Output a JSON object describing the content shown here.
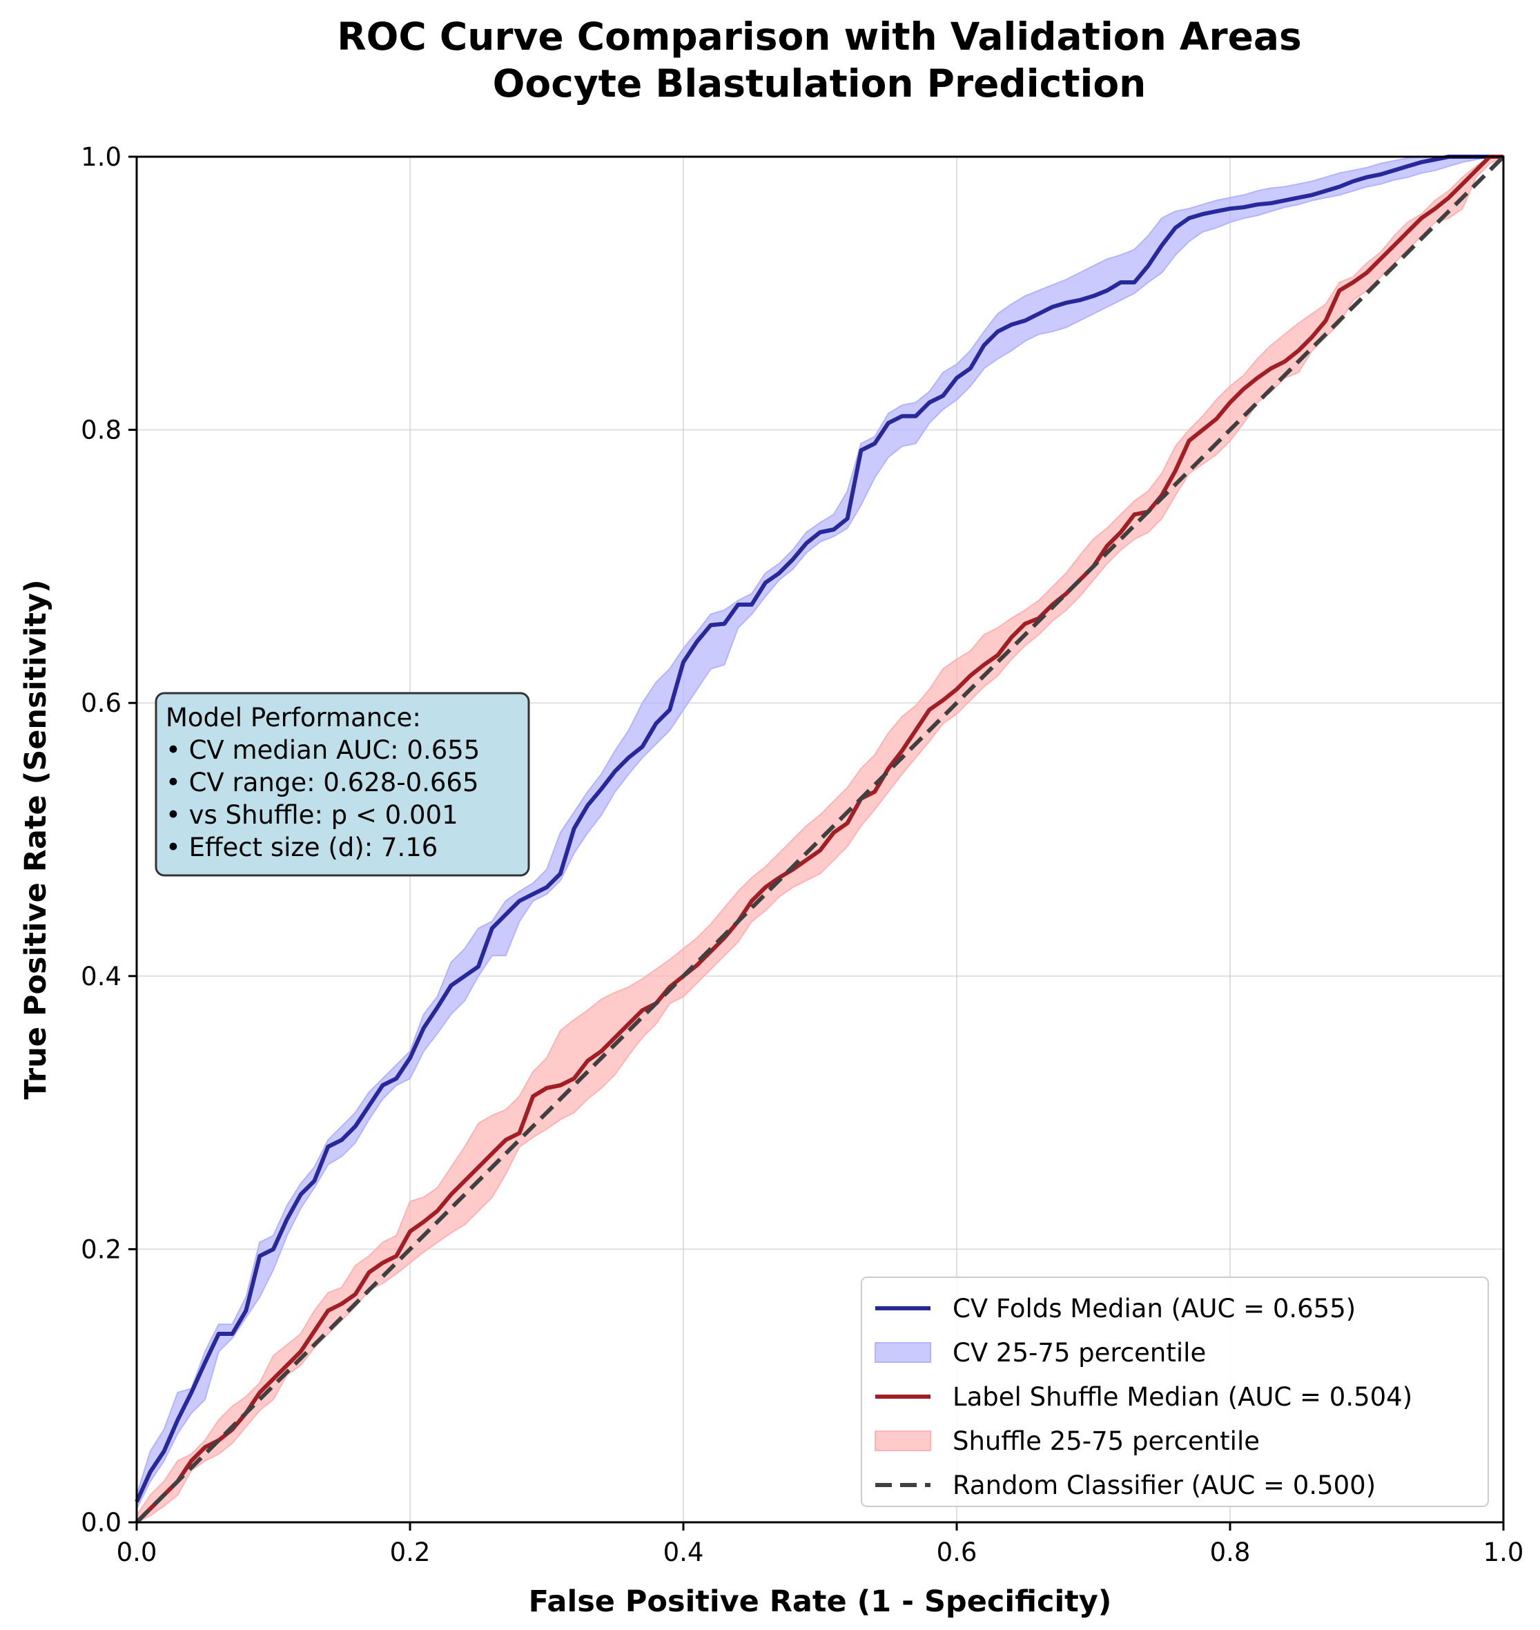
{
  "chart_data": {
    "type": "line",
    "title_lines": [
      "ROC Curve Comparison with Validation Areas",
      "Oocyte Blastulation Prediction"
    ],
    "xlabel": "False Positive Rate (1 - Specificity)",
    "ylabel": "True Positive Rate (Sensitivity)",
    "xlim": [
      0,
      1
    ],
    "ylim": [
      0,
      1
    ],
    "x_ticks": [
      "0.0",
      "0.2",
      "0.4",
      "0.6",
      "0.8",
      "1.0"
    ],
    "y_ticks": [
      "0.0",
      "0.2",
      "0.4",
      "0.6",
      "0.8",
      "1.0"
    ],
    "grid": true,
    "legend_position": "lower-right",
    "colors": {
      "cv_line": "#27289a",
      "cv_band": "#b3b3ff",
      "shuffle_line": "#a11f24",
      "shuffle_band": "#ffb3b3",
      "random_line": "#404040",
      "annotation_bg": "#bfe0ea"
    },
    "legend": [
      {
        "label": "CV Folds Median (AUC = 0.655)",
        "kind": "line",
        "color_key": "cv_line"
      },
      {
        "label": "CV 25-75 percentile",
        "kind": "band",
        "color_key": "cv_band"
      },
      {
        "label": "Label Shuffle Median (AUC = 0.504)",
        "kind": "line",
        "color_key": "shuffle_line"
      },
      {
        "label": "Shuffle 25-75 percentile",
        "kind": "band",
        "color_key": "shuffle_band"
      },
      {
        "label": "Random Classifier (AUC = 0.500)",
        "kind": "dashed",
        "color_key": "random_line"
      }
    ],
    "annotation": [
      "Model Performance:",
      "• CV median AUC: 0.655",
      "• CV range: 0.628-0.665",
      "• vs Shuffle: p < 0.001",
      "• Effect size (d): 7.16"
    ],
    "series": [
      {
        "name": "CV Folds Median (AUC = 0.655)",
        "x": [
          0.0,
          0.01,
          0.02,
          0.03,
          0.04,
          0.05,
          0.06,
          0.07,
          0.08,
          0.09,
          0.1,
          0.11,
          0.12,
          0.13,
          0.14,
          0.15,
          0.16,
          0.17,
          0.18,
          0.19,
          0.2,
          0.21,
          0.22,
          0.23,
          0.24,
          0.25,
          0.26,
          0.27,
          0.28,
          0.29,
          0.3,
          0.31,
          0.32,
          0.33,
          0.34,
          0.35,
          0.36,
          0.37,
          0.38,
          0.39,
          0.4,
          0.41,
          0.42,
          0.43,
          0.44,
          0.45,
          0.46,
          0.47,
          0.48,
          0.49,
          0.5,
          0.51,
          0.52,
          0.53,
          0.54,
          0.55,
          0.56,
          0.57,
          0.58,
          0.59,
          0.6,
          0.61,
          0.62,
          0.63,
          0.64,
          0.65,
          0.66,
          0.67,
          0.68,
          0.69,
          0.7,
          0.71,
          0.72,
          0.73,
          0.74,
          0.75,
          0.76,
          0.77,
          0.78,
          0.79,
          0.8,
          0.81,
          0.82,
          0.83,
          0.84,
          0.85,
          0.86,
          0.87,
          0.88,
          0.89,
          0.9,
          0.91,
          0.92,
          0.93,
          0.94,
          0.95,
          0.96,
          0.97,
          0.98,
          0.99,
          1.0
        ],
        "y": [
          0.015,
          0.037,
          0.052,
          0.075,
          0.095,
          0.117,
          0.138,
          0.138,
          0.155,
          0.195,
          0.2,
          0.222,
          0.24,
          0.25,
          0.275,
          0.28,
          0.29,
          0.305,
          0.32,
          0.325,
          0.34,
          0.362,
          0.377,
          0.393,
          0.4,
          0.407,
          0.435,
          0.445,
          0.455,
          0.46,
          0.465,
          0.475,
          0.508,
          0.525,
          0.537,
          0.55,
          0.56,
          0.568,
          0.585,
          0.595,
          0.63,
          0.645,
          0.657,
          0.658,
          0.672,
          0.672,
          0.688,
          0.695,
          0.705,
          0.717,
          0.725,
          0.727,
          0.735,
          0.785,
          0.79,
          0.805,
          0.81,
          0.81,
          0.82,
          0.825,
          0.838,
          0.845,
          0.862,
          0.872,
          0.877,
          0.88,
          0.885,
          0.89,
          0.893,
          0.895,
          0.898,
          0.902,
          0.908,
          0.908,
          0.92,
          0.935,
          0.948,
          0.955,
          0.958,
          0.96,
          0.962,
          0.963,
          0.965,
          0.966,
          0.968,
          0.97,
          0.972,
          0.975,
          0.978,
          0.982,
          0.985,
          0.987,
          0.99,
          0.993,
          0.996,
          0.998,
          1.0,
          1.0,
          1.0,
          1.0,
          1.0
        ]
      },
      {
        "name": "CV 25-75 percentile",
        "x": [
          0.0,
          0.01,
          0.02,
          0.03,
          0.04,
          0.05,
          0.06,
          0.07,
          0.08,
          0.09,
          0.1,
          0.11,
          0.12,
          0.13,
          0.14,
          0.15,
          0.16,
          0.17,
          0.18,
          0.19,
          0.2,
          0.21,
          0.22,
          0.23,
          0.24,
          0.25,
          0.26,
          0.27,
          0.28,
          0.29,
          0.3,
          0.31,
          0.32,
          0.33,
          0.34,
          0.35,
          0.36,
          0.37,
          0.38,
          0.39,
          0.4,
          0.41,
          0.42,
          0.43,
          0.44,
          0.45,
          0.46,
          0.47,
          0.48,
          0.49,
          0.5,
          0.51,
          0.52,
          0.53,
          0.54,
          0.55,
          0.56,
          0.57,
          0.58,
          0.59,
          0.6,
          0.61,
          0.62,
          0.63,
          0.64,
          0.65,
          0.66,
          0.67,
          0.68,
          0.69,
          0.7,
          0.71,
          0.72,
          0.73,
          0.74,
          0.75,
          0.76,
          0.77,
          0.78,
          0.79,
          0.8,
          0.81,
          0.82,
          0.83,
          0.84,
          0.85,
          0.86,
          0.87,
          0.88,
          0.89,
          0.9,
          0.91,
          0.92,
          0.93,
          0.94,
          0.95,
          0.96,
          0.97,
          0.98,
          0.99,
          1.0
        ],
        "lower": [
          0.01,
          0.03,
          0.045,
          0.065,
          0.08,
          0.09,
          0.125,
          0.135,
          0.15,
          0.165,
          0.185,
          0.21,
          0.23,
          0.245,
          0.262,
          0.268,
          0.278,
          0.295,
          0.31,
          0.32,
          0.325,
          0.345,
          0.358,
          0.372,
          0.382,
          0.4,
          0.415,
          0.415,
          0.44,
          0.455,
          0.46,
          0.47,
          0.49,
          0.505,
          0.518,
          0.535,
          0.548,
          0.56,
          0.57,
          0.58,
          0.595,
          0.61,
          0.625,
          0.628,
          0.655,
          0.665,
          0.678,
          0.69,
          0.698,
          0.71,
          0.718,
          0.722,
          0.728,
          0.745,
          0.765,
          0.78,
          0.788,
          0.79,
          0.805,
          0.815,
          0.822,
          0.832,
          0.845,
          0.852,
          0.858,
          0.865,
          0.87,
          0.872,
          0.875,
          0.88,
          0.885,
          0.89,
          0.895,
          0.9,
          0.908,
          0.915,
          0.928,
          0.938,
          0.945,
          0.948,
          0.952,
          0.955,
          0.957,
          0.96,
          0.963,
          0.965,
          0.968,
          0.97,
          0.972,
          0.975,
          0.978,
          0.98,
          0.983,
          0.985,
          0.988,
          0.99,
          0.993,
          0.996,
          0.998,
          1.0,
          1.0
        ],
        "upper": [
          0.02,
          0.052,
          0.068,
          0.095,
          0.098,
          0.125,
          0.145,
          0.145,
          0.165,
          0.205,
          0.21,
          0.232,
          0.248,
          0.26,
          0.28,
          0.29,
          0.3,
          0.315,
          0.325,
          0.335,
          0.345,
          0.372,
          0.385,
          0.41,
          0.42,
          0.435,
          0.44,
          0.455,
          0.462,
          0.468,
          0.478,
          0.505,
          0.52,
          0.535,
          0.548,
          0.565,
          0.58,
          0.6,
          0.615,
          0.625,
          0.64,
          0.652,
          0.665,
          0.668,
          0.675,
          0.68,
          0.695,
          0.702,
          0.712,
          0.725,
          0.732,
          0.738,
          0.755,
          0.79,
          0.795,
          0.812,
          0.818,
          0.82,
          0.828,
          0.842,
          0.848,
          0.858,
          0.872,
          0.885,
          0.892,
          0.898,
          0.902,
          0.906,
          0.91,
          0.915,
          0.92,
          0.925,
          0.928,
          0.932,
          0.942,
          0.955,
          0.96,
          0.962,
          0.965,
          0.968,
          0.97,
          0.972,
          0.975,
          0.977,
          0.978,
          0.98,
          0.982,
          0.985,
          0.988,
          0.99,
          0.992,
          0.995,
          0.997,
          0.999,
          1.0,
          1.0,
          1.0,
          1.0,
          1.0,
          1.0,
          1.0
        ]
      },
      {
        "name": "Label Shuffle Median (AUC = 0.504)",
        "x": [
          0.0,
          0.01,
          0.02,
          0.03,
          0.04,
          0.05,
          0.06,
          0.07,
          0.08,
          0.09,
          0.1,
          0.11,
          0.12,
          0.13,
          0.14,
          0.15,
          0.16,
          0.17,
          0.18,
          0.19,
          0.2,
          0.21,
          0.22,
          0.23,
          0.24,
          0.25,
          0.26,
          0.27,
          0.28,
          0.29,
          0.3,
          0.31,
          0.32,
          0.33,
          0.34,
          0.35,
          0.36,
          0.37,
          0.38,
          0.39,
          0.4,
          0.41,
          0.42,
          0.43,
          0.44,
          0.45,
          0.46,
          0.47,
          0.48,
          0.49,
          0.5,
          0.51,
          0.52,
          0.53,
          0.54,
          0.55,
          0.56,
          0.57,
          0.58,
          0.59,
          0.6,
          0.61,
          0.62,
          0.63,
          0.64,
          0.65,
          0.66,
          0.67,
          0.68,
          0.69,
          0.7,
          0.71,
          0.72,
          0.73,
          0.74,
          0.75,
          0.76,
          0.77,
          0.78,
          0.79,
          0.8,
          0.81,
          0.82,
          0.83,
          0.84,
          0.85,
          0.86,
          0.87,
          0.88,
          0.89,
          0.9,
          0.91,
          0.92,
          0.93,
          0.94,
          0.95,
          0.96,
          0.97,
          0.98,
          0.99,
          1.0
        ],
        "y": [
          0.0,
          0.01,
          0.02,
          0.03,
          0.045,
          0.055,
          0.06,
          0.068,
          0.08,
          0.095,
          0.105,
          0.115,
          0.125,
          0.14,
          0.155,
          0.16,
          0.167,
          0.183,
          0.19,
          0.195,
          0.213,
          0.22,
          0.228,
          0.24,
          0.25,
          0.26,
          0.27,
          0.28,
          0.285,
          0.312,
          0.318,
          0.32,
          0.325,
          0.338,
          0.345,
          0.355,
          0.365,
          0.375,
          0.38,
          0.392,
          0.4,
          0.408,
          0.418,
          0.428,
          0.44,
          0.455,
          0.465,
          0.472,
          0.478,
          0.485,
          0.492,
          0.505,
          0.512,
          0.53,
          0.535,
          0.552,
          0.565,
          0.58,
          0.595,
          0.602,
          0.61,
          0.62,
          0.628,
          0.635,
          0.648,
          0.658,
          0.662,
          0.672,
          0.68,
          0.69,
          0.7,
          0.715,
          0.725,
          0.738,
          0.74,
          0.752,
          0.77,
          0.792,
          0.8,
          0.808,
          0.82,
          0.83,
          0.838,
          0.845,
          0.85,
          0.858,
          0.868,
          0.88,
          0.902,
          0.908,
          0.915,
          0.925,
          0.935,
          0.945,
          0.955,
          0.962,
          0.97,
          0.98,
          0.99,
          1.0,
          1.0
        ]
      },
      {
        "name": "Shuffle 25-75 percentile",
        "x": [
          0.0,
          0.01,
          0.02,
          0.03,
          0.04,
          0.05,
          0.06,
          0.07,
          0.08,
          0.09,
          0.1,
          0.11,
          0.12,
          0.13,
          0.14,
          0.15,
          0.16,
          0.17,
          0.18,
          0.19,
          0.2,
          0.21,
          0.22,
          0.23,
          0.24,
          0.25,
          0.26,
          0.27,
          0.28,
          0.29,
          0.3,
          0.31,
          0.32,
          0.33,
          0.34,
          0.35,
          0.36,
          0.37,
          0.38,
          0.39,
          0.4,
          0.41,
          0.42,
          0.43,
          0.44,
          0.45,
          0.46,
          0.47,
          0.48,
          0.49,
          0.5,
          0.51,
          0.52,
          0.53,
          0.54,
          0.55,
          0.56,
          0.57,
          0.58,
          0.59,
          0.6,
          0.61,
          0.62,
          0.63,
          0.64,
          0.65,
          0.66,
          0.67,
          0.68,
          0.69,
          0.7,
          0.71,
          0.72,
          0.73,
          0.74,
          0.75,
          0.76,
          0.77,
          0.78,
          0.79,
          0.8,
          0.81,
          0.82,
          0.83,
          0.84,
          0.85,
          0.86,
          0.87,
          0.88,
          0.89,
          0.9,
          0.91,
          0.92,
          0.93,
          0.94,
          0.95,
          0.96,
          0.97,
          0.98,
          0.99,
          1.0
        ],
        "lower": [
          0.0,
          0.005,
          0.012,
          0.02,
          0.038,
          0.045,
          0.05,
          0.058,
          0.07,
          0.082,
          0.09,
          0.108,
          0.115,
          0.128,
          0.138,
          0.148,
          0.158,
          0.17,
          0.175,
          0.182,
          0.19,
          0.198,
          0.205,
          0.212,
          0.218,
          0.228,
          0.238,
          0.255,
          0.275,
          0.282,
          0.288,
          0.295,
          0.3,
          0.31,
          0.318,
          0.328,
          0.342,
          0.355,
          0.365,
          0.38,
          0.385,
          0.395,
          0.405,
          0.415,
          0.425,
          0.44,
          0.448,
          0.458,
          0.465,
          0.47,
          0.475,
          0.485,
          0.495,
          0.51,
          0.522,
          0.535,
          0.548,
          0.56,
          0.572,
          0.585,
          0.592,
          0.602,
          0.612,
          0.62,
          0.632,
          0.642,
          0.65,
          0.66,
          0.668,
          0.678,
          0.69,
          0.702,
          0.712,
          0.72,
          0.725,
          0.735,
          0.752,
          0.768,
          0.775,
          0.782,
          0.792,
          0.805,
          0.82,
          0.828,
          0.838,
          0.842,
          0.858,
          0.868,
          0.878,
          0.895,
          0.902,
          0.912,
          0.922,
          0.932,
          0.942,
          0.952,
          0.955,
          0.962,
          0.985,
          0.995,
          1.0
        ],
        "upper": [
          0.005,
          0.02,
          0.03,
          0.045,
          0.05,
          0.06,
          0.075,
          0.085,
          0.092,
          0.102,
          0.122,
          0.13,
          0.138,
          0.155,
          0.168,
          0.172,
          0.188,
          0.195,
          0.205,
          0.21,
          0.235,
          0.238,
          0.245,
          0.26,
          0.275,
          0.292,
          0.298,
          0.302,
          0.312,
          0.33,
          0.34,
          0.36,
          0.368,
          0.375,
          0.383,
          0.388,
          0.392,
          0.398,
          0.405,
          0.412,
          0.42,
          0.428,
          0.438,
          0.45,
          0.462,
          0.472,
          0.48,
          0.49,
          0.5,
          0.51,
          0.518,
          0.528,
          0.538,
          0.552,
          0.562,
          0.578,
          0.59,
          0.598,
          0.61,
          0.625,
          0.632,
          0.638,
          0.65,
          0.655,
          0.662,
          0.668,
          0.675,
          0.685,
          0.695,
          0.708,
          0.72,
          0.728,
          0.738,
          0.748,
          0.755,
          0.768,
          0.788,
          0.8,
          0.81,
          0.822,
          0.832,
          0.84,
          0.852,
          0.862,
          0.87,
          0.878,
          0.885,
          0.892,
          0.908,
          0.912,
          0.922,
          0.93,
          0.942,
          0.952,
          0.958,
          0.968,
          0.975,
          0.985,
          0.993,
          1.0,
          1.0
        ]
      },
      {
        "name": "Random Classifier (AUC = 0.500)",
        "x": [
          0,
          1
        ],
        "y": [
          0,
          1
        ]
      }
    ]
  }
}
